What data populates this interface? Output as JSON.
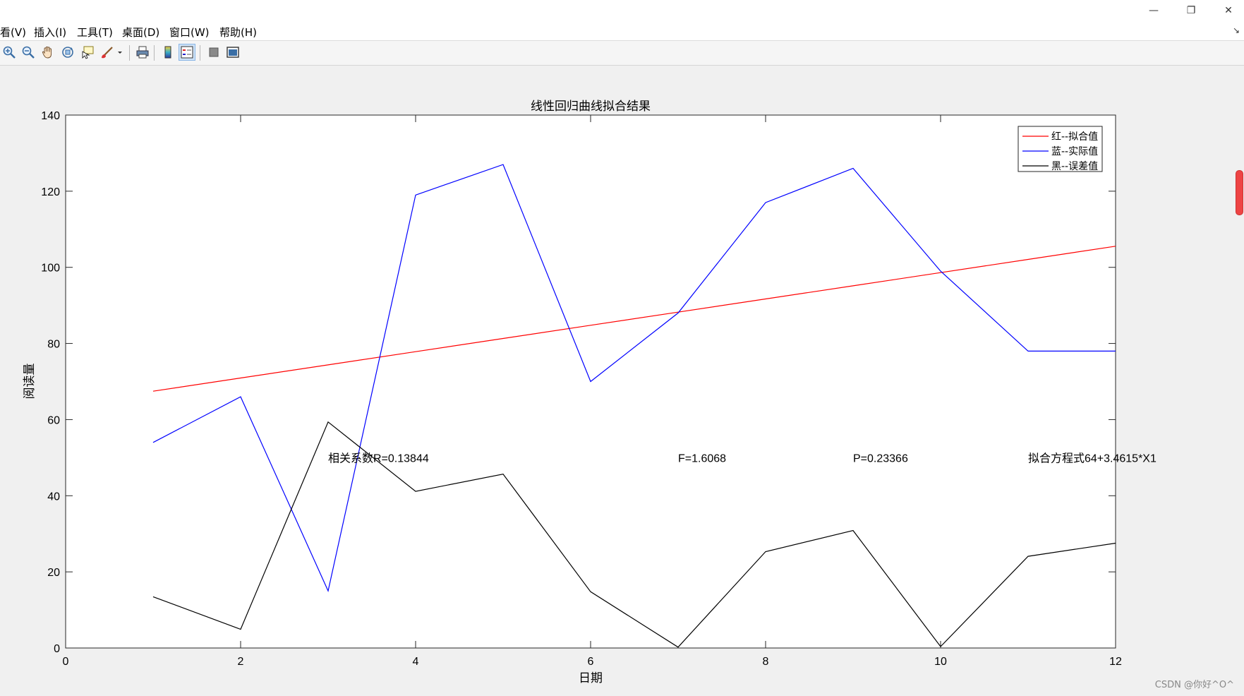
{
  "window": {
    "minimize_glyph": "—",
    "restore_glyph": "❐",
    "close_glyph": "✕"
  },
  "menu": {
    "items": [
      "看(V)",
      "插入(I)",
      "工具(T)",
      "桌面(D)",
      "窗口(W)",
      "帮助(H)"
    ],
    "dock_glyph": "↘"
  },
  "toolbar": {
    "icons": [
      "zoom-in-icon",
      "zoom-out-icon",
      "pan-hand-icon",
      "rotate-3d-icon",
      "data-cursor-icon",
      "brush-icon",
      "print-icon",
      "colorbar-icon",
      "legend-icon",
      "hide-plot-tools-icon",
      "show-plot-tools-icon"
    ]
  },
  "chart_data": {
    "type": "line",
    "title": "线性回归曲线拟合结果",
    "xlabel": "日期",
    "ylabel": "阅读量",
    "xlim": [
      0,
      12
    ],
    "ylim": [
      0,
      140
    ],
    "xticks": [
      0,
      2,
      4,
      6,
      8,
      10,
      12
    ],
    "yticks": [
      0,
      20,
      40,
      60,
      80,
      100,
      120,
      140
    ],
    "grid": false,
    "legend_position": "top-right",
    "x": [
      1,
      2,
      3,
      4,
      5,
      6,
      7,
      8,
      9,
      10,
      11,
      12
    ],
    "series": [
      {
        "name": "红--拟合值",
        "color": "#ff0000",
        "values": [
          67.46,
          70.92,
          74.38,
          77.85,
          81.31,
          84.77,
          88.23,
          91.69,
          95.15,
          98.62,
          102.08,
          105.54
        ]
      },
      {
        "name": "蓝--实际值",
        "color": "#0000ff",
        "values": [
          54,
          66,
          15,
          119,
          127,
          70,
          88,
          117,
          126,
          99,
          78,
          78
        ]
      },
      {
        "name": "黑--误差值",
        "color": "#000000",
        "values": [
          13.46,
          4.92,
          59.38,
          41.15,
          45.69,
          14.77,
          0.23,
          25.31,
          30.85,
          0.38,
          24.08,
          27.54
        ]
      }
    ],
    "annotations": [
      {
        "text": "相关系数R=0.13844",
        "x": 3.0,
        "y": 50
      },
      {
        "text": "F=1.6068",
        "x": 7.0,
        "y": 50
      },
      {
        "text": "P=0.23366",
        "x": 9.0,
        "y": 50
      },
      {
        "text": "拟合方程式64+3.4615*X1",
        "x": 11.0,
        "y": 50
      }
    ]
  },
  "watermark": "CSDN @你好^O^"
}
